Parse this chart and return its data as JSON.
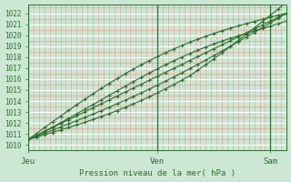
{
  "title": "",
  "xlabel": "Pression niveau de la mer( hPa )",
  "ylim": [
    1009.5,
    1022.8
  ],
  "yticks": [
    1010,
    1011,
    1012,
    1013,
    1014,
    1015,
    1016,
    1017,
    1018,
    1019,
    1020,
    1021,
    1022
  ],
  "xlim": [
    0,
    96
  ],
  "xtick_positions": [
    0,
    48,
    90
  ],
  "xtick_labels": [
    "Jeu",
    "Ven",
    "Sam"
  ],
  "bg_color": "#cce8d4",
  "line_color": "#2d6e2d",
  "red_grid_color": "#e89090",
  "white_grid_color": "#ffffff",
  "n_lines": 5
}
